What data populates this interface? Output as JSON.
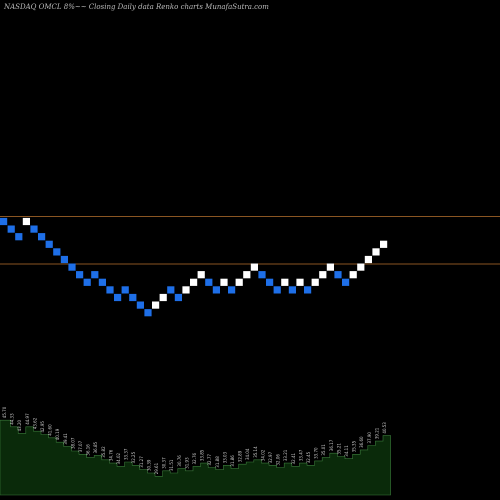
{
  "title": "NASDAQ OMCL  8%~~  Closing Daily data  Renko  charts MunafaSutra.com",
  "colors": {
    "background": "#000000",
    "up_brick": "#ffffff",
    "down_brick": "#1e6fe8",
    "reference_line": "#b8722e",
    "volume_fill": "#0a2a0a",
    "volume_stroke": "#3a7a3a"
  },
  "chart_data": {
    "type": "renko",
    "title": "NASDAQ OMCL  8%~~  Closing Daily data  Renko  charts MunafaSutra.com",
    "bricks": [
      {
        "level": 0,
        "dir": "down"
      },
      {
        "level": -1,
        "dir": "down"
      },
      {
        "level": -2,
        "dir": "down"
      },
      {
        "level": 0,
        "dir": "up"
      },
      {
        "level": -1,
        "dir": "down"
      },
      {
        "level": -2,
        "dir": "down"
      },
      {
        "level": -3,
        "dir": "down"
      },
      {
        "level": -4,
        "dir": "down"
      },
      {
        "level": -5,
        "dir": "down"
      },
      {
        "level": -6,
        "dir": "down"
      },
      {
        "level": -7,
        "dir": "down"
      },
      {
        "level": -8,
        "dir": "down"
      },
      {
        "level": -7,
        "dir": "down"
      },
      {
        "level": -8,
        "dir": "down"
      },
      {
        "level": -9,
        "dir": "down"
      },
      {
        "level": -10,
        "dir": "down"
      },
      {
        "level": -9,
        "dir": "down"
      },
      {
        "level": -10,
        "dir": "down"
      },
      {
        "level": -11,
        "dir": "down"
      },
      {
        "level": -12,
        "dir": "down"
      },
      {
        "level": -11,
        "dir": "up"
      },
      {
        "level": -10,
        "dir": "up"
      },
      {
        "level": -9,
        "dir": "down"
      },
      {
        "level": -10,
        "dir": "down"
      },
      {
        "level": -9,
        "dir": "up"
      },
      {
        "level": -8,
        "dir": "up"
      },
      {
        "level": -7,
        "dir": "up"
      },
      {
        "level": -8,
        "dir": "down"
      },
      {
        "level": -9,
        "dir": "down"
      },
      {
        "level": -8,
        "dir": "up"
      },
      {
        "level": -9,
        "dir": "down"
      },
      {
        "level": -8,
        "dir": "up"
      },
      {
        "level": -7,
        "dir": "up"
      },
      {
        "level": -6,
        "dir": "up"
      },
      {
        "level": -7,
        "dir": "down"
      },
      {
        "level": -8,
        "dir": "down"
      },
      {
        "level": -9,
        "dir": "down"
      },
      {
        "level": -8,
        "dir": "up"
      },
      {
        "level": -9,
        "dir": "down"
      },
      {
        "level": -8,
        "dir": "up"
      },
      {
        "level": -9,
        "dir": "down"
      },
      {
        "level": -8,
        "dir": "up"
      },
      {
        "level": -7,
        "dir": "up"
      },
      {
        "level": -6,
        "dir": "up"
      },
      {
        "level": -7,
        "dir": "down"
      },
      {
        "level": -8,
        "dir": "down"
      },
      {
        "level": -7,
        "dir": "up"
      },
      {
        "level": -6,
        "dir": "up"
      },
      {
        "level": -5,
        "dir": "up"
      },
      {
        "level": -4,
        "dir": "up"
      },
      {
        "level": -3,
        "dir": "up"
      }
    ],
    "reference_levels": [
      0,
      -6
    ],
    "volume_labels": [
      {
        "label": "45.70",
        "height": 0.68
      },
      {
        "label": "44.33",
        "height": 0.62
      },
      {
        "label": "43.20",
        "height": 0.56
      },
      {
        "label": "44.97",
        "height": 0.62
      },
      {
        "label": "43.62",
        "height": 0.58
      },
      {
        "label": "42.95",
        "height": 0.55
      },
      {
        "label": "41.60",
        "height": 0.52
      },
      {
        "label": "40.19",
        "height": 0.48
      },
      {
        "label": "39.41",
        "height": 0.44
      },
      {
        "label": "38.07",
        "height": 0.4
      },
      {
        "label": "37.07",
        "height": 0.37
      },
      {
        "label": "36.16",
        "height": 0.34
      },
      {
        "label": "36.85",
        "height": 0.36
      },
      {
        "label": "35.82",
        "height": 0.32
      },
      {
        "label": "34.76",
        "height": 0.29
      },
      {
        "label": "34.02",
        "height": 0.26
      },
      {
        "label": "33.37",
        "height": 0.3
      },
      {
        "label": "32.25",
        "height": 0.27
      },
      {
        "label": "31.27",
        "height": 0.23
      },
      {
        "label": "30.39",
        "height": 0.2
      },
      {
        "label": "29.61",
        "height": 0.17
      },
      {
        "label": "30.37",
        "height": 0.22
      },
      {
        "label": "31.51",
        "height": 0.2
      },
      {
        "label": "30.76",
        "height": 0.24
      },
      {
        "label": "31.93",
        "height": 0.22
      },
      {
        "label": "32.76",
        "height": 0.26
      },
      {
        "label": "33.85",
        "height": 0.29
      },
      {
        "label": "32.77",
        "height": 0.25
      },
      {
        "label": "31.88",
        "height": 0.23
      },
      {
        "label": "33.03",
        "height": 0.27
      },
      {
        "label": "31.86",
        "height": 0.24
      },
      {
        "label": "32.89",
        "height": 0.28
      },
      {
        "label": "34.04",
        "height": 0.3
      },
      {
        "label": "35.14",
        "height": 0.32
      },
      {
        "label": "34.02",
        "height": 0.29
      },
      {
        "label": "32.97",
        "height": 0.27
      },
      {
        "label": "32.06",
        "height": 0.25
      },
      {
        "label": "33.21",
        "height": 0.29
      },
      {
        "label": "32.41",
        "height": 0.26
      },
      {
        "label": "33.47",
        "height": 0.29
      },
      {
        "label": "32.45",
        "height": 0.27
      },
      {
        "label": "33.70",
        "height": 0.31
      },
      {
        "label": "35.01",
        "height": 0.34
      },
      {
        "label": "36.17",
        "height": 0.38
      },
      {
        "label": "35.21",
        "height": 0.35
      },
      {
        "label": "34.11",
        "height": 0.33
      },
      {
        "label": "35.35",
        "height": 0.37
      },
      {
        "label": "36.60",
        "height": 0.41
      },
      {
        "label": "37.90",
        "height": 0.45
      },
      {
        "label": "39.21",
        "height": 0.49
      },
      {
        "label": "40.53",
        "height": 0.54
      }
    ]
  }
}
